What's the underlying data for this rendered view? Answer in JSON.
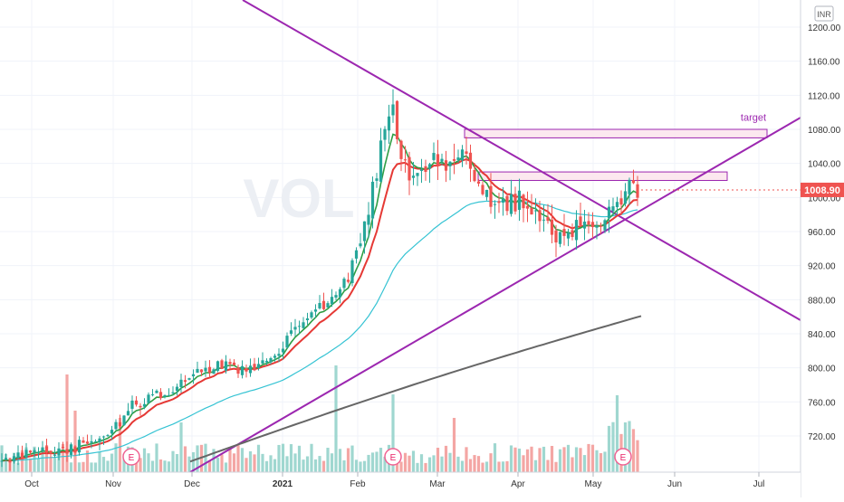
{
  "chart_data": {
    "type": "candlestick",
    "symbol_watermark": "VOL",
    "currency": "INR",
    "last_price": "1008.90",
    "ylim": [
      680,
      1230
    ],
    "y_ticks": [
      "1200.00",
      "1160.00",
      "1120.00",
      "1080.00",
      "1040.00",
      "1000.00",
      "960.00",
      "920.00",
      "880.00",
      "840.00",
      "800.00",
      "760.00",
      "720.00"
    ],
    "x_ticks": [
      "Oct",
      "Nov",
      "Dec",
      "2021",
      "Feb",
      "Mar",
      "Apr",
      "May",
      "Jun",
      "Jul"
    ],
    "annotations": {
      "target_label": "target",
      "earnings_marker": "E"
    },
    "colors": {
      "up": "#26a69a",
      "down": "#ef5350",
      "vol_up": "#9fd7d0",
      "vol_down": "#f4a6a4",
      "ma_green": "#2e9e44",
      "ma_red": "#e53935",
      "ma_cyan": "#35c3d3",
      "ma_gray": "#666666",
      "trendline": "#9c27b0",
      "zone_fill": "#fce4ec",
      "zone_stroke": "#9c27b0",
      "price_badge": "#ef5350",
      "grid": "#f0f3fa",
      "axis_text": "#333333"
    }
  }
}
